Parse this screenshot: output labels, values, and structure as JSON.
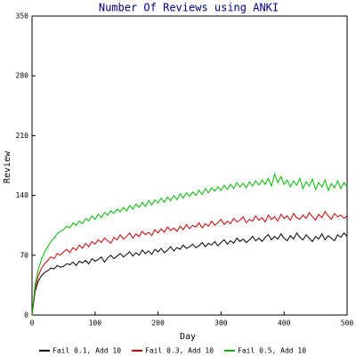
{
  "chart_data": {
    "type": "line",
    "title": "Number Of Reviews using ANKI",
    "x_label": "Day",
    "y_label": "Review",
    "x": [
      0,
      5,
      10,
      15,
      20,
      25,
      30,
      35,
      40,
      45,
      50,
      55,
      60,
      65,
      70,
      75,
      80,
      85,
      90,
      95,
      100,
      105,
      110,
      115,
      120,
      125,
      130,
      135,
      140,
      145,
      150,
      155,
      160,
      165,
      170,
      175,
      180,
      185,
      190,
      195,
      200,
      205,
      210,
      215,
      220,
      225,
      230,
      235,
      240,
      245,
      250,
      255,
      260,
      265,
      270,
      275,
      280,
      285,
      290,
      295,
      300,
      305,
      310,
      315,
      320,
      325,
      330,
      335,
      340,
      345,
      350,
      355,
      360,
      365,
      370,
      375,
      380,
      385,
      390,
      395,
      400,
      405,
      410,
      415,
      420,
      425,
      430,
      435,
      440,
      445,
      450,
      455,
      460,
      465,
      470,
      475,
      480,
      485,
      490,
      495,
      500
    ],
    "series": [
      {
        "name": "Fail 0.1, Add 10",
        "color": "#000000",
        "values": [
          0,
          28,
          40,
          46,
          50,
          52,
          55,
          54,
          58,
          56,
          57,
          60,
          59,
          62,
          58,
          63,
          61,
          64,
          60,
          66,
          63,
          65,
          68,
          62,
          67,
          70,
          66,
          69,
          72,
          68,
          71,
          74,
          69,
          73,
          70,
          76,
          72,
          75,
          71,
          77,
          74,
          78,
          73,
          76,
          80,
          75,
          79,
          77,
          82,
          78,
          80,
          83,
          79,
          81,
          85,
          80,
          84,
          82,
          86,
          81,
          85,
          88,
          83,
          87,
          84,
          90,
          86,
          89,
          85,
          88,
          92,
          87,
          90,
          86,
          91,
          94,
          88,
          92,
          89,
          95,
          90,
          87,
          93,
          89,
          96,
          91,
          88,
          94,
          90,
          86,
          92,
          89,
          95,
          88,
          93,
          90,
          87,
          94,
          91,
          96,
          92
        ]
      },
      {
        "name": "Fail 0.3, Add 10",
        "color": "#cc0000",
        "values": [
          0,
          32,
          46,
          55,
          60,
          64,
          68,
          66,
          72,
          70,
          74,
          77,
          73,
          79,
          76,
          82,
          78,
          84,
          80,
          86,
          83,
          88,
          85,
          90,
          87,
          84,
          91,
          88,
          94,
          89,
          92,
          96,
          90,
          95,
          92,
          98,
          94,
          97,
          93,
          100,
          96,
          101,
          97,
          103,
          99,
          102,
          98,
          104,
          100,
          106,
          101,
          105,
          103,
          108,
          102,
          107,
          104,
          110,
          105,
          108,
          112,
          106,
          110,
          107,
          113,
          109,
          111,
          115,
          108,
          112,
          110,
          116,
          111,
          114,
          109,
          117,
          112,
          115,
          110,
          118,
          113,
          116,
          111,
          119,
          114,
          112,
          117,
          113,
          120,
          115,
          111,
          118,
          114,
          121,
          116,
          112,
          119,
          115,
          117,
          113,
          116
        ]
      },
      {
        "name": "Fail 0.5, Add 10",
        "color": "#00bb00",
        "values": [
          0,
          36,
          54,
          65,
          74,
          80,
          86,
          90,
          95,
          98,
          100,
          104,
          102,
          108,
          105,
          110,
          107,
          113,
          110,
          116,
          112,
          118,
          114,
          120,
          117,
          122,
          119,
          124,
          121,
          126,
          122,
          128,
          124,
          130,
          126,
          132,
          127,
          134,
          129,
          135,
          131,
          137,
          132,
          138,
          134,
          140,
          135,
          142,
          137,
          143,
          139,
          144,
          140,
          146,
          141,
          148,
          143,
          149,
          145,
          150,
          146,
          152,
          147,
          153,
          148,
          155,
          150,
          154,
          149,
          156,
          151,
          157,
          152,
          158,
          153,
          160,
          151,
          165,
          155,
          162,
          153,
          158,
          150,
          157,
          152,
          160,
          148,
          156,
          151,
          159,
          147,
          155,
          150,
          158,
          146,
          154,
          149,
          157,
          148,
          155,
          150
        ]
      }
    ],
    "xlim": [
      0,
      500
    ],
    "xticks": [
      0,
      100,
      200,
      300,
      400,
      500
    ],
    "ylim": [
      0,
      350
    ],
    "yticks": [
      0,
      70,
      140,
      210,
      280,
      350
    ],
    "grid": false,
    "legend": "bottom"
  }
}
